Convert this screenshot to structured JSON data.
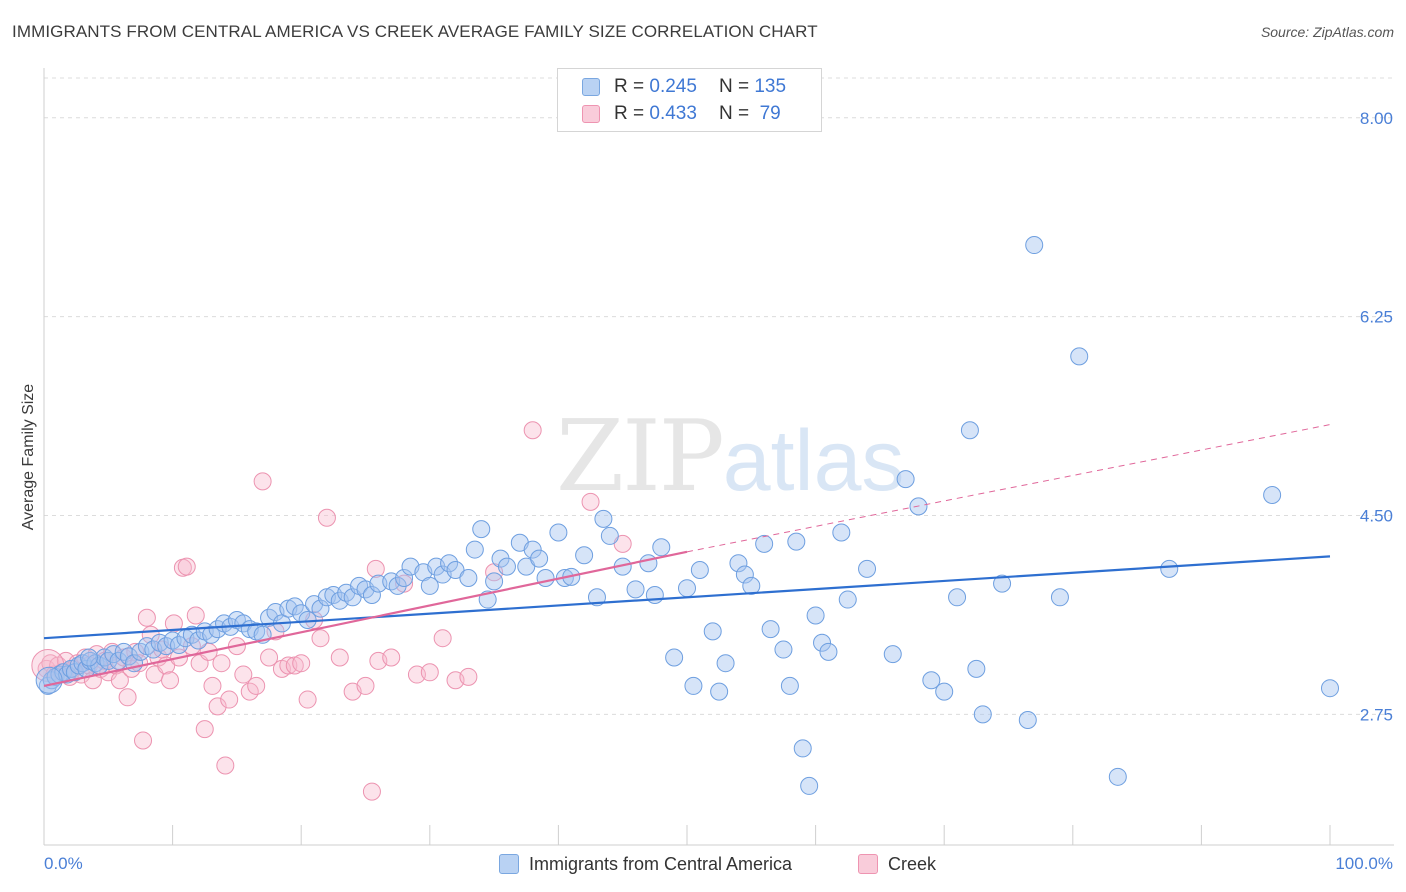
{
  "header": {
    "title": "IMMIGRANTS FROM CENTRAL AMERICA VS CREEK AVERAGE FAMILY SIZE CORRELATION CHART",
    "source": "Source: ZipAtlas.com"
  },
  "watermark": {
    "zip": "ZIP",
    "atlas": "atlas"
  },
  "legend": {
    "rows": [
      {
        "r_label": "R =",
        "r_value": "0.245",
        "n_label": "N =",
        "n_value": "135",
        "color": "#a9c8f0",
        "border": "#7aa7e0"
      },
      {
        "r_label": "R =",
        "r_value": "0.433",
        "n_label": "N =",
        "n_value": " 79",
        "color": "#f7bfd0",
        "border": "#ee94b1"
      }
    ]
  },
  "bottom_legend": {
    "series1": "Immigrants from Central America",
    "series2": "Creek"
  },
  "colors": {
    "blue_fill": "rgba(163,196,240,0.45)",
    "blue_stroke": "#6e9fe0",
    "blue_line": "#2e6fd0",
    "pink_fill": "rgba(247,184,204,0.40)",
    "pink_stroke": "#ec93b0",
    "pink_line": "#e0679a",
    "grid": "#dcdcdc",
    "tick_label": "#4a7fd6"
  },
  "chart_data": {
    "type": "scatter",
    "title": "IMMIGRANTS FROM CENTRAL AMERICA VS CREEK AVERAGE FAMILY SIZE CORRELATION CHART",
    "xlabel": "",
    "ylabel": "Average Family Size",
    "xlim": [
      0,
      100
    ],
    "ylim": [
      1.6,
      8.35
    ],
    "x_tick_labels": [
      "0.0%",
      "100.0%"
    ],
    "y_ticks": [
      2.75,
      4.5,
      6.25,
      8.0
    ],
    "y_tick_labels": [
      "2.75",
      "4.50",
      "6.25",
      "8.00"
    ],
    "grid": true,
    "legend_position": "top-center",
    "series": [
      {
        "name": "Immigrants from Central America",
        "R": 0.245,
        "N": 135,
        "trend": {
          "x": [
            0,
            100
          ],
          "y": [
            3.42,
            4.14
          ]
        },
        "points": [
          [
            0.3,
            3.0
          ],
          [
            0.6,
            3.05
          ],
          [
            0.9,
            3.08
          ],
          [
            1.2,
            3.1
          ],
          [
            1.5,
            3.12
          ],
          [
            1.8,
            3.1
          ],
          [
            2.1,
            3.15
          ],
          [
            2.4,
            3.12
          ],
          [
            2.7,
            3.18
          ],
          [
            3.0,
            3.2
          ],
          [
            3.3,
            3.15
          ],
          [
            3.6,
            3.22
          ],
          [
            4.0,
            3.2
          ],
          [
            4.3,
            3.18
          ],
          [
            4.7,
            3.25
          ],
          [
            5.0,
            3.22
          ],
          [
            5.4,
            3.28
          ],
          [
            5.8,
            3.22
          ],
          [
            6.2,
            3.3
          ],
          [
            6.6,
            3.26
          ],
          [
            7.0,
            3.2
          ],
          [
            7.5,
            3.3
          ],
          [
            8.0,
            3.35
          ],
          [
            8.5,
            3.32
          ],
          [
            9.0,
            3.38
          ],
          [
            9.5,
            3.35
          ],
          [
            10.0,
            3.4
          ],
          [
            10.5,
            3.36
          ],
          [
            11.0,
            3.42
          ],
          [
            11.5,
            3.45
          ],
          [
            12.0,
            3.4
          ],
          [
            12.5,
            3.48
          ],
          [
            13.0,
            3.45
          ],
          [
            13.5,
            3.5
          ],
          [
            14.0,
            3.55
          ],
          [
            14.5,
            3.52
          ],
          [
            15.0,
            3.58
          ],
          [
            15.5,
            3.55
          ],
          [
            16.0,
            3.5
          ],
          [
            16.5,
            3.48
          ],
          [
            17.0,
            3.45
          ],
          [
            17.5,
            3.6
          ],
          [
            18.0,
            3.65
          ],
          [
            18.5,
            3.55
          ],
          [
            19.0,
            3.68
          ],
          [
            19.5,
            3.7
          ],
          [
            20.0,
            3.64
          ],
          [
            20.5,
            3.58
          ],
          [
            21.0,
            3.72
          ],
          [
            21.5,
            3.68
          ],
          [
            22.0,
            3.78
          ],
          [
            22.5,
            3.8
          ],
          [
            23.0,
            3.75
          ],
          [
            23.5,
            3.82
          ],
          [
            24.0,
            3.78
          ],
          [
            24.5,
            3.88
          ],
          [
            25.0,
            3.85
          ],
          [
            25.5,
            3.8
          ],
          [
            26.0,
            3.9
          ],
          [
            27.0,
            3.92
          ],
          [
            27.5,
            3.88
          ],
          [
            28.0,
            3.95
          ],
          [
            28.5,
            4.05
          ],
          [
            29.5,
            4.0
          ],
          [
            30.0,
            3.88
          ],
          [
            30.5,
            4.05
          ],
          [
            31.0,
            3.98
          ],
          [
            31.5,
            4.08
          ],
          [
            32.0,
            4.02
          ],
          [
            33.0,
            3.95
          ],
          [
            33.5,
            4.2
          ],
          [
            34.0,
            4.38
          ],
          [
            34.5,
            3.76
          ],
          [
            35.0,
            3.92
          ],
          [
            35.5,
            4.12
          ],
          [
            36.0,
            4.05
          ],
          [
            37.0,
            4.26
          ],
          [
            37.5,
            4.05
          ],
          [
            38.0,
            4.2
          ],
          [
            38.5,
            4.12
          ],
          [
            39.0,
            3.95
          ],
          [
            40.0,
            4.35
          ],
          [
            40.5,
            3.95
          ],
          [
            41.0,
            3.96
          ],
          [
            42.0,
            4.15
          ],
          [
            43.0,
            3.78
          ],
          [
            43.5,
            4.47
          ],
          [
            44.0,
            4.32
          ],
          [
            45.0,
            4.05
          ],
          [
            46.0,
            3.85
          ],
          [
            47.0,
            4.08
          ],
          [
            47.5,
            3.8
          ],
          [
            48.0,
            4.22
          ],
          [
            49.0,
            3.25
          ],
          [
            50.0,
            3.86
          ],
          [
            50.5,
            3.0
          ],
          [
            51.0,
            4.02
          ],
          [
            52.0,
            3.48
          ],
          [
            52.5,
            2.95
          ],
          [
            53.0,
            3.2
          ],
          [
            54.0,
            4.08
          ],
          [
            54.5,
            3.98
          ],
          [
            55.0,
            3.88
          ],
          [
            56.0,
            4.25
          ],
          [
            56.5,
            3.5
          ],
          [
            57.5,
            3.32
          ],
          [
            58.0,
            3.0
          ],
          [
            58.5,
            4.27
          ],
          [
            59.0,
            2.45
          ],
          [
            59.5,
            2.12
          ],
          [
            60.0,
            3.62
          ],
          [
            60.5,
            3.38
          ],
          [
            61.0,
            3.3
          ],
          [
            62.0,
            4.35
          ],
          [
            62.5,
            3.76
          ],
          [
            64.0,
            4.03
          ],
          [
            66.0,
            3.28
          ],
          [
            67.0,
            4.82
          ],
          [
            68.0,
            4.58
          ],
          [
            69.0,
            3.05
          ],
          [
            70.0,
            2.95
          ],
          [
            71.0,
            3.78
          ],
          [
            72.0,
            5.25
          ],
          [
            72.5,
            3.15
          ],
          [
            73.0,
            2.75
          ],
          [
            74.5,
            3.9
          ],
          [
            76.5,
            2.7
          ],
          [
            77.0,
            6.88
          ],
          [
            79.0,
            3.78
          ],
          [
            80.5,
            5.9
          ],
          [
            83.5,
            2.2
          ],
          [
            87.5,
            4.03
          ],
          [
            95.5,
            4.68
          ],
          [
            100.0,
            2.98
          ],
          [
            3.5,
            3.25
          ]
        ]
      },
      {
        "name": "Creek",
        "R": 0.433,
        "N": 79,
        "trend": {
          "x": [
            0,
            50
          ],
          "y": [
            3.0,
            4.18
          ]
        },
        "trend_dashed": {
          "x": [
            50,
            100
          ],
          "y": [
            4.18,
            5.3
          ]
        },
        "points": [
          [
            0.2,
            3.15
          ],
          [
            0.5,
            3.2
          ],
          [
            0.8,
            3.1
          ],
          [
            1.1,
            3.18
          ],
          [
            1.4,
            3.12
          ],
          [
            1.7,
            3.22
          ],
          [
            2.0,
            3.08
          ],
          [
            2.3,
            3.15
          ],
          [
            2.6,
            3.2
          ],
          [
            2.9,
            3.1
          ],
          [
            3.2,
            3.25
          ],
          [
            3.5,
            3.18
          ],
          [
            3.8,
            3.05
          ],
          [
            4.1,
            3.28
          ],
          [
            4.4,
            3.15
          ],
          [
            4.7,
            3.22
          ],
          [
            5.0,
            3.12
          ],
          [
            5.3,
            3.3
          ],
          [
            5.6,
            3.18
          ],
          [
            5.9,
            3.05
          ],
          [
            6.2,
            3.25
          ],
          [
            6.5,
            2.9
          ],
          [
            6.8,
            3.15
          ],
          [
            7.1,
            3.3
          ],
          [
            7.4,
            3.2
          ],
          [
            7.7,
            2.52
          ],
          [
            8.0,
            3.6
          ],
          [
            8.3,
            3.45
          ],
          [
            8.6,
            3.1
          ],
          [
            8.9,
            3.25
          ],
          [
            9.2,
            3.32
          ],
          [
            9.5,
            3.18
          ],
          [
            9.8,
            3.05
          ],
          [
            10.1,
            3.55
          ],
          [
            10.5,
            3.25
          ],
          [
            10.8,
            4.04
          ],
          [
            11.1,
            4.05
          ],
          [
            11.5,
            3.35
          ],
          [
            11.8,
            3.62
          ],
          [
            12.1,
            3.2
          ],
          [
            12.5,
            2.62
          ],
          [
            12.8,
            3.3
          ],
          [
            13.1,
            3.0
          ],
          [
            13.5,
            2.82
          ],
          [
            13.8,
            3.2
          ],
          [
            14.1,
            2.3
          ],
          [
            14.4,
            2.88
          ],
          [
            15.0,
            3.35
          ],
          [
            15.5,
            3.1
          ],
          [
            16.0,
            2.95
          ],
          [
            16.5,
            3.0
          ],
          [
            17.0,
            4.8
          ],
          [
            17.5,
            3.25
          ],
          [
            18.0,
            3.48
          ],
          [
            18.5,
            3.15
          ],
          [
            19.0,
            3.18
          ],
          [
            19.5,
            3.18
          ],
          [
            20.0,
            3.2
          ],
          [
            20.5,
            2.88
          ],
          [
            21.0,
            3.58
          ],
          [
            21.5,
            3.42
          ],
          [
            22.0,
            4.48
          ],
          [
            23.0,
            3.25
          ],
          [
            24.0,
            2.95
          ],
          [
            25.0,
            3.0
          ],
          [
            25.5,
            2.07
          ],
          [
            25.8,
            4.03
          ],
          [
            26.0,
            3.22
          ],
          [
            27.0,
            3.25
          ],
          [
            28.0,
            3.9
          ],
          [
            29.0,
            3.1
          ],
          [
            30.0,
            3.12
          ],
          [
            31.0,
            3.42
          ],
          [
            32.0,
            3.05
          ],
          [
            33.0,
            3.08
          ],
          [
            35.0,
            4.0
          ],
          [
            38.0,
            5.25
          ],
          [
            42.5,
            4.62
          ],
          [
            45.0,
            4.25
          ]
        ]
      }
    ]
  }
}
